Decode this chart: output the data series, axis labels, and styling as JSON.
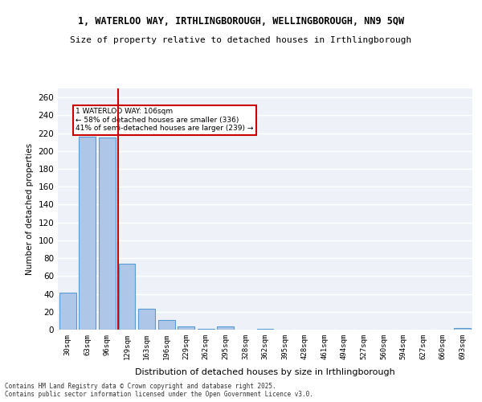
{
  "title1": "1, WATERLOO WAY, IRTHLINGBOROUGH, WELLINGBOROUGH, NN9 5QW",
  "title2": "Size of property relative to detached houses in Irthlingborough",
  "xlabel": "Distribution of detached houses by size in Irthlingborough",
  "ylabel": "Number of detached properties",
  "categories": [
    "30sqm",
    "63sqm",
    "96sqm",
    "129sqm",
    "163sqm",
    "196sqm",
    "229sqm",
    "262sqm",
    "295sqm",
    "328sqm",
    "362sqm",
    "395sqm",
    "428sqm",
    "461sqm",
    "494sqm",
    "527sqm",
    "560sqm",
    "594sqm",
    "627sqm",
    "660sqm",
    "693sqm"
  ],
  "values": [
    41,
    216,
    215,
    74,
    23,
    11,
    4,
    1,
    4,
    0,
    1,
    0,
    0,
    0,
    0,
    0,
    0,
    0,
    0,
    0,
    2
  ],
  "bar_color": "#aec6e8",
  "bar_edge_color": "#5b9bd5",
  "bg_color": "#eef2f8",
  "grid_color": "#ffffff",
  "vline_x": 2.55,
  "vline_color": "#cc0000",
  "annotation_text": "1 WATERLOO WAY: 106sqm\n← 58% of detached houses are smaller (336)\n41% of semi-detached houses are larger (239) →",
  "annotation_box_color": "#cc0000",
  "ylim": [
    0,
    270
  ],
  "yticks": [
    0,
    20,
    40,
    60,
    80,
    100,
    120,
    140,
    160,
    180,
    200,
    220,
    240,
    260
  ],
  "footer1": "Contains HM Land Registry data © Crown copyright and database right 2025.",
  "footer2": "Contains public sector information licensed under the Open Government Licence v3.0."
}
